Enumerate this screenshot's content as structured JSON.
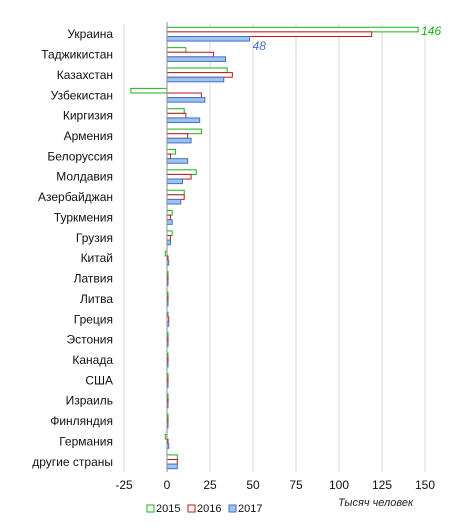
{
  "chart_data": {
    "type": "bar",
    "orientation": "horizontal",
    "categories": [
      "Украина",
      "Таджикистан",
      "Казахстан",
      "Узбекистан",
      "Киргизия",
      "Армения",
      "Белоруссия",
      "Молдавия",
      "Азербайджан",
      "Туркмения",
      "Грузия",
      "Китай",
      "Латвия",
      "Литва",
      "Греция",
      "Эстония",
      "Канада",
      "США",
      "Израиль",
      "Финляндия",
      "Германия",
      "другие страны"
    ],
    "series": [
      {
        "name": "2015",
        "color": "#19b219",
        "values": [
          146,
          11,
          35,
          -21,
          10,
          20,
          5,
          17,
          10,
          3,
          3,
          -1,
          0.5,
          0.5,
          0.5,
          0.3,
          0.3,
          0.3,
          0.5,
          0.3,
          -1,
          6
        ]
      },
      {
        "name": "2016",
        "color": "#c0161b",
        "values": [
          119,
          27,
          38,
          20,
          11,
          12,
          2,
          14,
          10,
          2,
          2,
          0.5,
          0.5,
          0.5,
          1,
          0.5,
          0.5,
          0.5,
          0.3,
          0.3,
          0.5,
          6
        ]
      },
      {
        "name": "2017",
        "color": "#4472c4",
        "values": [
          48,
          34,
          33,
          22,
          19,
          14,
          12,
          9,
          8,
          3,
          2,
          1,
          0.5,
          0.5,
          1,
          0.5,
          0.5,
          0.5,
          0.5,
          0.5,
          1,
          6
        ]
      }
    ],
    "xlim": [
      -25,
      150
    ],
    "xticks": [
      "-25",
      "0",
      "25",
      "50",
      "75",
      "100",
      "125",
      "150"
    ],
    "xtick_values": [
      -25,
      0,
      25,
      50,
      75,
      100,
      125,
      150
    ],
    "xlabel": "Тысяч человек",
    "ylabel": "",
    "title": "",
    "grid": true,
    "legend_position": "bottom",
    "annotations": [
      {
        "text": "146",
        "category": "Украина",
        "series": "2015",
        "color": "#19b219"
      },
      {
        "text": "48",
        "category": "Украина",
        "series": "2017",
        "color": "#4472c4"
      }
    ]
  }
}
